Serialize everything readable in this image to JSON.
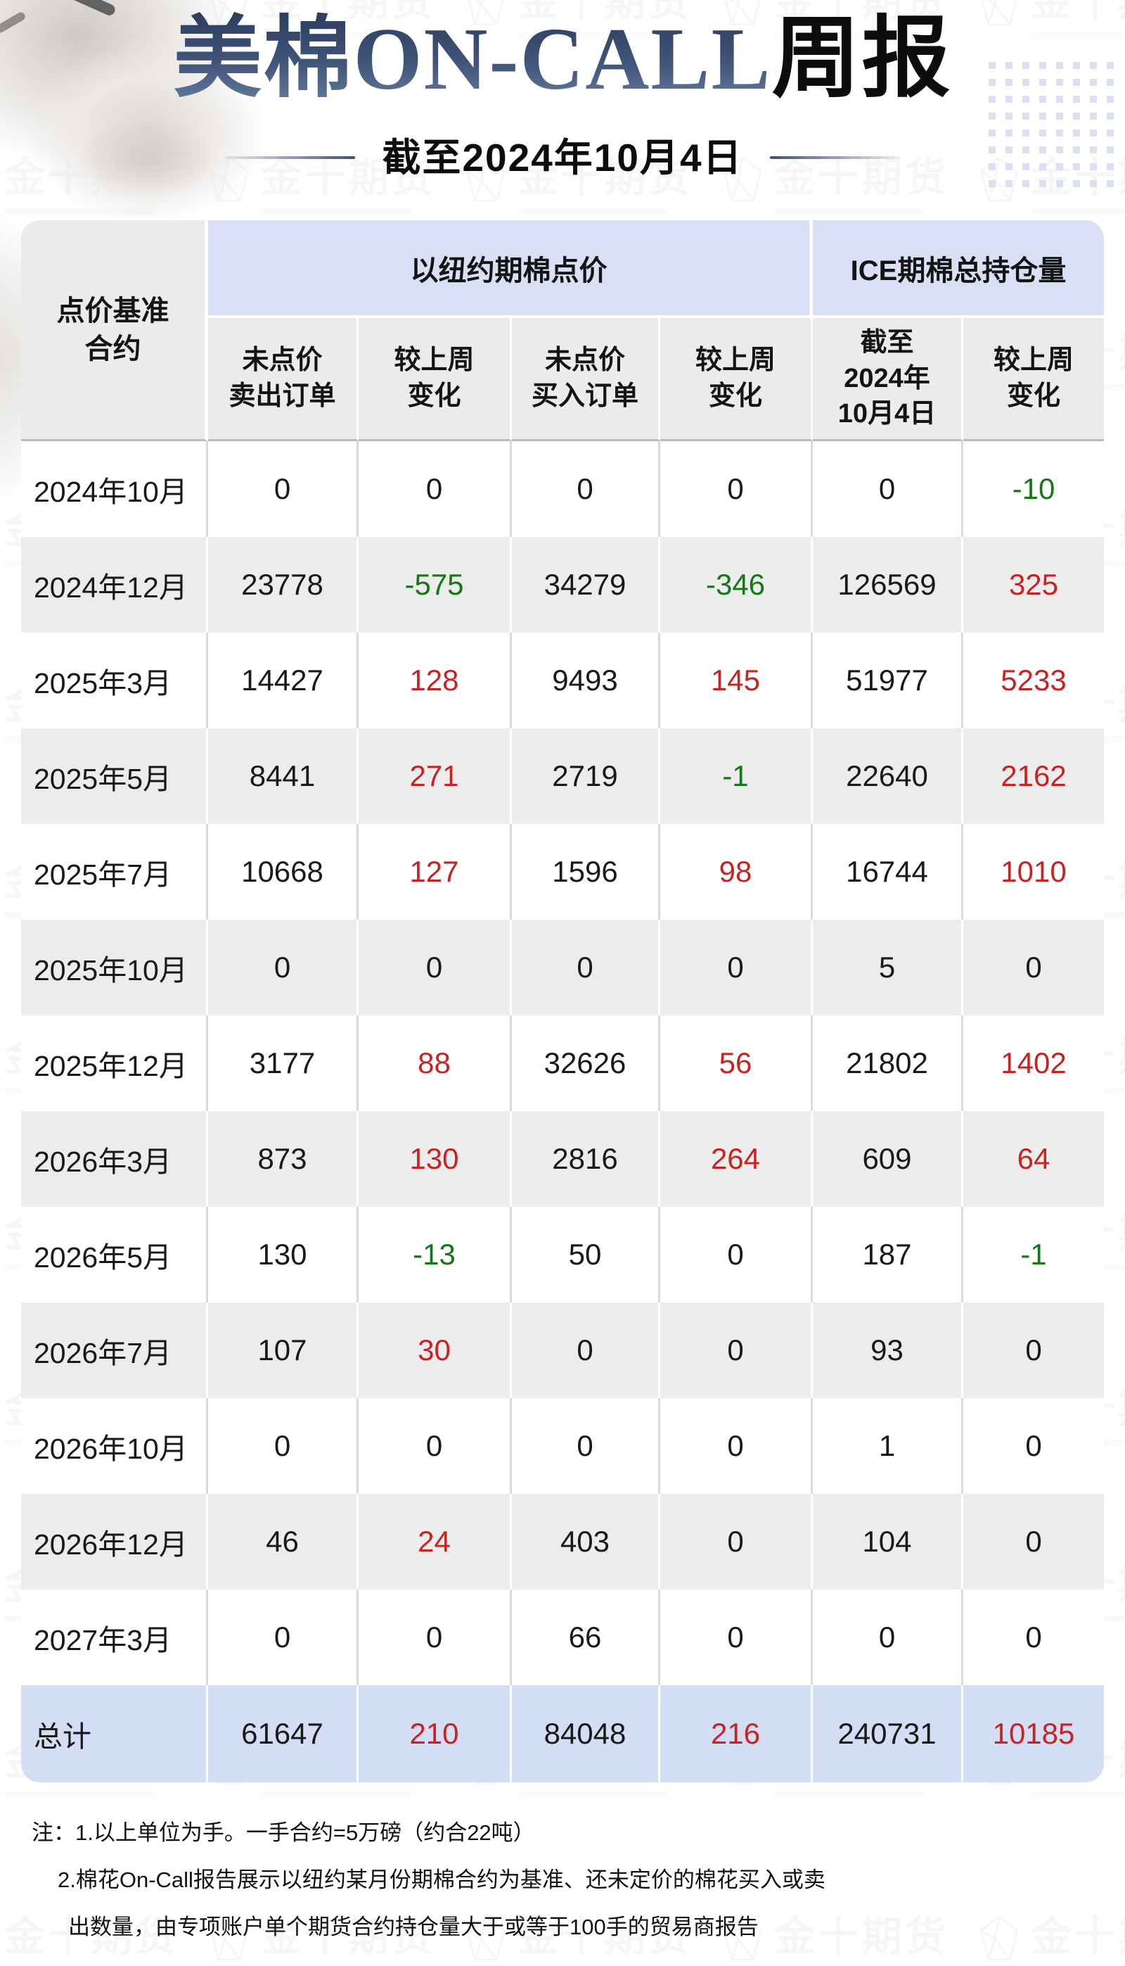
{
  "header": {
    "title_accent": "美棉ON-CALL",
    "title_black": "周报",
    "subtitle": "截至2024年10月4日"
  },
  "watermark": {
    "text": "金十期货",
    "icon": "gem-icon"
  },
  "colors": {
    "accent_navy": "#3d4f73",
    "group_header_blue": "#d9e0f6",
    "subheader_gray": "#ebebeb",
    "alt_row_gray": "#ececec",
    "total_row_blue": "#d3ddf3",
    "increase_red": "#c82323",
    "decrease_green": "#177718"
  },
  "table": {
    "corner_header": "点价基准\n合约",
    "group1": "以纽约期棉点价",
    "group2": "ICE期棉总持仓量",
    "sub_headers": [
      "未点价\n卖出订单",
      "较上周\n变化",
      "未点价\n买入订单",
      "较上周\n变化",
      "截至\n2024年\n10月4日",
      "较上周\n变化"
    ],
    "rows": [
      {
        "label": "2024年10月",
        "cells": [
          {
            "t": "0"
          },
          {
            "t": "0"
          },
          {
            "t": "0"
          },
          {
            "t": "0"
          },
          {
            "t": "0"
          },
          {
            "t": "-10",
            "c": "green"
          }
        ]
      },
      {
        "label": "2024年12月",
        "cells": [
          {
            "t": "23778"
          },
          {
            "t": "-575",
            "c": "green"
          },
          {
            "t": "34279"
          },
          {
            "t": "-346",
            "c": "green"
          },
          {
            "t": "126569"
          },
          {
            "t": "325",
            "c": "red"
          }
        ]
      },
      {
        "label": "2025年3月",
        "cells": [
          {
            "t": "14427"
          },
          {
            "t": "128",
            "c": "red"
          },
          {
            "t": "9493"
          },
          {
            "t": "145",
            "c": "red"
          },
          {
            "t": "51977"
          },
          {
            "t": "5233",
            "c": "red"
          }
        ]
      },
      {
        "label": "2025年5月",
        "cells": [
          {
            "t": "8441"
          },
          {
            "t": "271",
            "c": "red"
          },
          {
            "t": "2719"
          },
          {
            "t": "-1",
            "c": "green"
          },
          {
            "t": "22640"
          },
          {
            "t": "2162",
            "c": "red"
          }
        ]
      },
      {
        "label": "2025年7月",
        "cells": [
          {
            "t": "10668"
          },
          {
            "t": "127",
            "c": "red"
          },
          {
            "t": "1596"
          },
          {
            "t": "98",
            "c": "red"
          },
          {
            "t": "16744"
          },
          {
            "t": "1010",
            "c": "red"
          }
        ]
      },
      {
        "label": "2025年10月",
        "cells": [
          {
            "t": "0"
          },
          {
            "t": "0"
          },
          {
            "t": "0"
          },
          {
            "t": "0"
          },
          {
            "t": "5"
          },
          {
            "t": "0"
          }
        ]
      },
      {
        "label": "2025年12月",
        "cells": [
          {
            "t": "3177"
          },
          {
            "t": "88",
            "c": "red"
          },
          {
            "t": "32626"
          },
          {
            "t": "56",
            "c": "red"
          },
          {
            "t": "21802"
          },
          {
            "t": "1402",
            "c": "red"
          }
        ]
      },
      {
        "label": "2026年3月",
        "cells": [
          {
            "t": "873"
          },
          {
            "t": "130",
            "c": "red"
          },
          {
            "t": "2816"
          },
          {
            "t": "264",
            "c": "red"
          },
          {
            "t": "609"
          },
          {
            "t": "64",
            "c": "red"
          }
        ]
      },
      {
        "label": "2026年5月",
        "cells": [
          {
            "t": "130"
          },
          {
            "t": "-13",
            "c": "green"
          },
          {
            "t": "50"
          },
          {
            "t": "0"
          },
          {
            "t": "187"
          },
          {
            "t": "-1",
            "c": "green"
          }
        ]
      },
      {
        "label": "2026年7月",
        "cells": [
          {
            "t": "107"
          },
          {
            "t": "30",
            "c": "red"
          },
          {
            "t": "0"
          },
          {
            "t": "0"
          },
          {
            "t": "93"
          },
          {
            "t": "0"
          }
        ]
      },
      {
        "label": "2026年10月",
        "cells": [
          {
            "t": "0"
          },
          {
            "t": "0"
          },
          {
            "t": "0"
          },
          {
            "t": "0"
          },
          {
            "t": "1"
          },
          {
            "t": "0"
          }
        ]
      },
      {
        "label": "2026年12月",
        "cells": [
          {
            "t": "46"
          },
          {
            "t": "24",
            "c": "red"
          },
          {
            "t": "403"
          },
          {
            "t": "0"
          },
          {
            "t": "104"
          },
          {
            "t": "0"
          }
        ]
      },
      {
        "label": "2027年3月",
        "cells": [
          {
            "t": "0"
          },
          {
            "t": "0"
          },
          {
            "t": "66"
          },
          {
            "t": "0"
          },
          {
            "t": "0"
          },
          {
            "t": "0"
          }
        ]
      }
    ],
    "total": {
      "label": "总计",
      "cells": [
        {
          "t": "61647"
        },
        {
          "t": "210",
          "c": "red"
        },
        {
          "t": "84048"
        },
        {
          "t": "216",
          "c": "red"
        },
        {
          "t": "240731"
        },
        {
          "t": "10185",
          "c": "red"
        }
      ]
    }
  },
  "notes": [
    "注：1.以上单位为手。一手合约=5万磅（约合22吨）",
    "2.棉花On-Call报告展示以纽约某月份期棉合约为基准、还未定价的棉花买入或卖",
    "出数量，由专项账户单个期货合约持仓量大于或等于100手的贸易商报告"
  ]
}
